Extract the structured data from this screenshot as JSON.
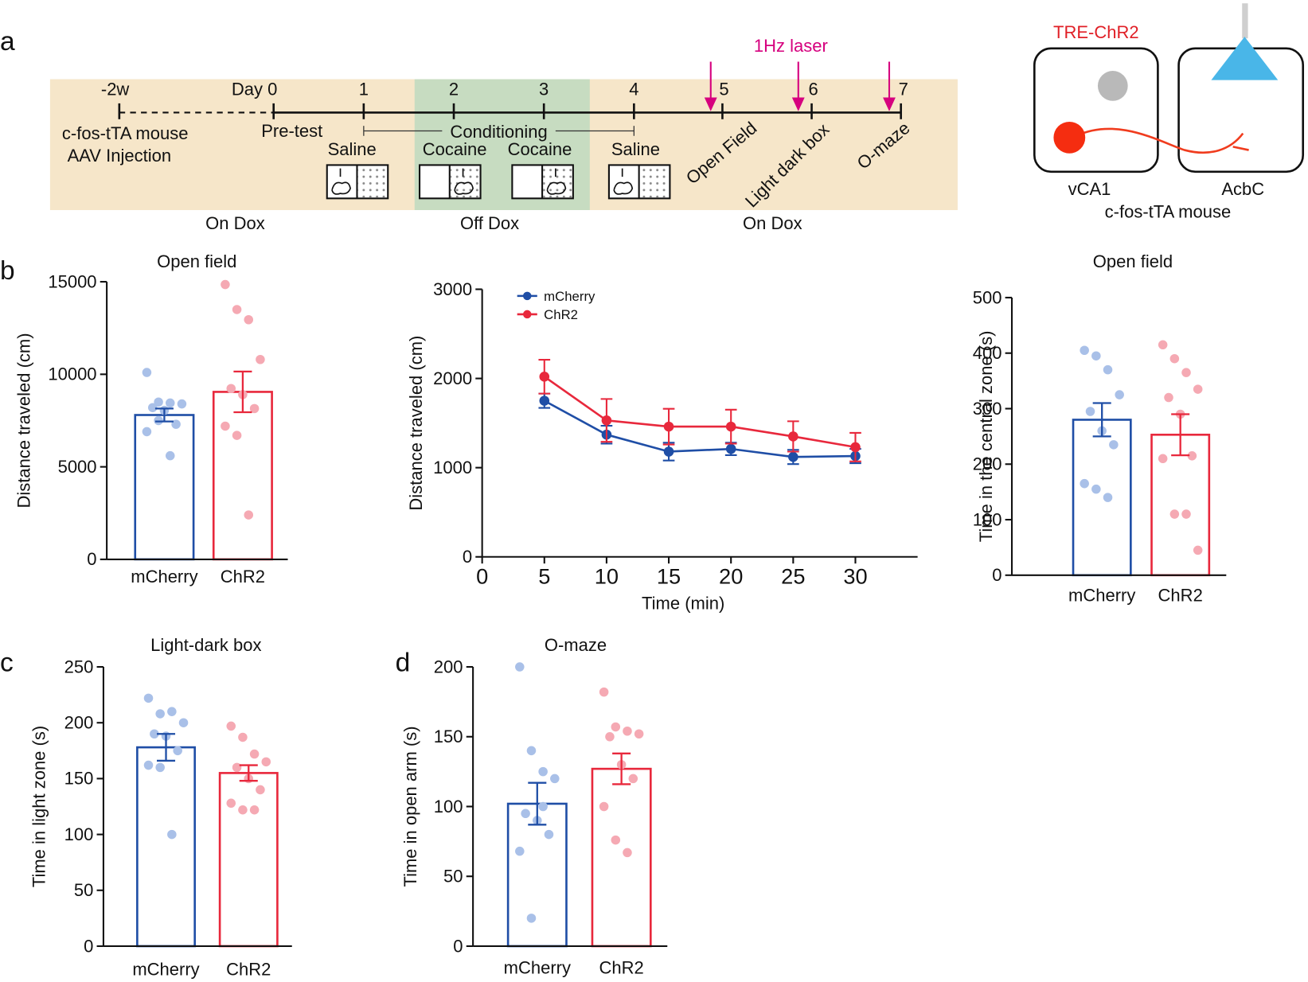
{
  "panel_labels": [
    "a",
    "b",
    "c",
    "d"
  ],
  "diagram": {
    "day_labels": [
      "-2w",
      "Day 0",
      "1",
      "2",
      "3",
      "4",
      "5",
      "6",
      "7"
    ],
    "injection": [
      "c-fos-tTA mouse",
      "AAV Injection"
    ],
    "pretest": "Pre-test",
    "conditioning": "Conditioning",
    "sessions": [
      "Saline",
      "Cocaine",
      "Cocaine",
      "Saline"
    ],
    "tests": [
      "Open Field",
      "Light dark box",
      "O-maze"
    ],
    "laser": "1Hz laser",
    "phases": [
      "On Dox",
      "Off Dox",
      "On Dox"
    ],
    "schematic": {
      "construct": "TRE-ChR2",
      "regions": [
        "vCA1",
        "AcbC"
      ],
      "mouse": "c-fos-tTA mouse"
    }
  },
  "chart_data": [
    {
      "type": "bar",
      "title": "Open field",
      "ylabel": "Distance traveled (cm)",
      "categories": [
        "mCherry",
        "ChR2"
      ],
      "values": [
        7800,
        9050
      ],
      "errors": [
        350,
        1100
      ],
      "points": [
        [
          10100,
          8500,
          8450,
          8400,
          8200,
          8050,
          7300,
          6900,
          7500,
          5600
        ],
        [
          14850,
          13500,
          12950,
          10800,
          9230,
          8900,
          8150,
          7200,
          6700,
          2400
        ]
      ],
      "colors": [
        "#1f4ea6",
        "#e8283c"
      ],
      "point_colors": [
        "#a9c0e8",
        "#f5a9b3"
      ],
      "ylim": [
        0,
        15000
      ],
      "yticks": [
        0,
        5000,
        10000,
        15000
      ]
    },
    {
      "type": "line",
      "ylabel": "Distance traveled (cm)",
      "xlabel": "Time (min)",
      "x": [
        5,
        10,
        15,
        20,
        25,
        30
      ],
      "series": [
        {
          "name": "mCherry",
          "color": "#1f4ea6",
          "values": [
            1750,
            1370,
            1180,
            1210,
            1120,
            1130
          ],
          "errors": [
            80,
            100,
            100,
            70,
            80,
            80
          ]
        },
        {
          "name": "ChR2",
          "color": "#e8283c",
          "values": [
            2020,
            1530,
            1460,
            1460,
            1350,
            1230
          ],
          "errors": [
            190,
            240,
            200,
            190,
            170,
            160
          ]
        }
      ],
      "xlim": [
        0,
        35
      ],
      "xticks": [
        0,
        5,
        10,
        15,
        20,
        25,
        30
      ],
      "ylim": [
        0,
        3000
      ],
      "yticks": [
        0,
        1000,
        2000,
        3000
      ],
      "legend": "upper left"
    },
    {
      "type": "bar",
      "title": "Open field",
      "ylabel": "Time in the central zone (s)",
      "categories": [
        "mCherry",
        "ChR2"
      ],
      "values": [
        280,
        253
      ],
      "errors": [
        30,
        37
      ],
      "points": [
        [
          405,
          395,
          370,
          325,
          295,
          260,
          235,
          165,
          155,
          140
        ],
        [
          415,
          390,
          365,
          335,
          320,
          290,
          215,
          210,
          110,
          110,
          45
        ]
      ],
      "colors": [
        "#1f4ea6",
        "#e8283c"
      ],
      "point_colors": [
        "#a9c0e8",
        "#f5a9b3"
      ],
      "ylim": [
        0,
        500
      ],
      "yticks": [
        0,
        100,
        200,
        300,
        400,
        500
      ]
    },
    {
      "type": "bar",
      "title": "Light-dark box",
      "ylabel": "Time in light zone (s)",
      "categories": [
        "mCherry",
        "ChR2"
      ],
      "values": [
        178,
        155
      ],
      "errors": [
        12,
        7
      ],
      "points": [
        [
          222,
          208,
          210,
          200,
          190,
          188,
          175,
          162,
          160,
          100
        ],
        [
          197,
          187,
          172,
          165,
          160,
          150,
          140,
          128,
          122,
          122
        ]
      ],
      "colors": [
        "#1f4ea6",
        "#e8283c"
      ],
      "point_colors": [
        "#a9c0e8",
        "#f5a9b3"
      ],
      "ylim": [
        0,
        250
      ],
      "yticks": [
        0,
        50,
        100,
        150,
        200,
        250
      ]
    },
    {
      "type": "bar",
      "title": "O-maze",
      "ylabel": "Time in open arm (s)",
      "categories": [
        "mCherry",
        "ChR2"
      ],
      "values": [
        102,
        127
      ],
      "errors": [
        15,
        11
      ],
      "points": [
        [
          200,
          140,
          125,
          120,
          95,
          90,
          80,
          68,
          20,
          100
        ],
        [
          182,
          157,
          154,
          152,
          150,
          130,
          120,
          100,
          76,
          67
        ]
      ],
      "colors": [
        "#1f4ea6",
        "#e8283c"
      ],
      "point_colors": [
        "#a9c0e8",
        "#f5a9b3"
      ],
      "ylim": [
        0,
        200
      ],
      "yticks": [
        0,
        50,
        100,
        150,
        200
      ]
    }
  ]
}
